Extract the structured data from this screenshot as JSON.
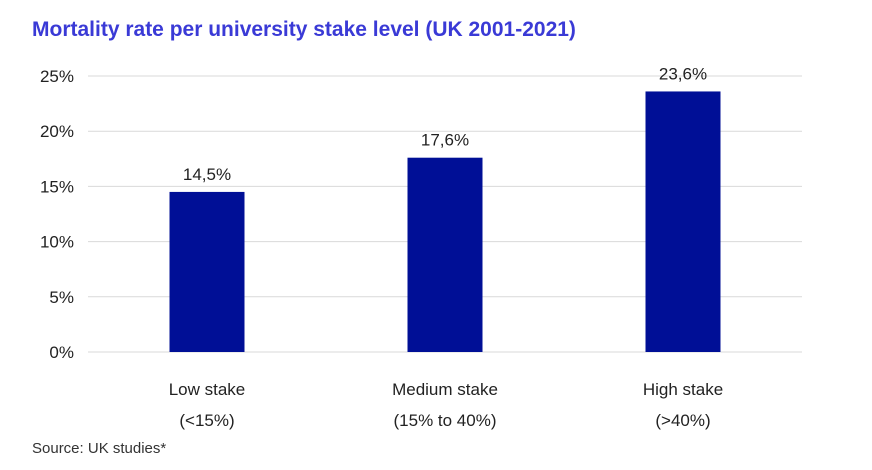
{
  "chart_data": {
    "type": "bar",
    "title": "Mortality rate per university stake level (UK 2001-2021)",
    "categories": [
      [
        "Low stake",
        "(<15%)"
      ],
      [
        "Medium stake",
        "(15% to 40%)"
      ],
      [
        "High stake",
        "(>40%)"
      ]
    ],
    "values": [
      14.5,
      17.6,
      23.6
    ],
    "data_labels": [
      "14,5%",
      "17,6%",
      "23,6%"
    ],
    "y_ticks": [
      0,
      5,
      10,
      15,
      20,
      25
    ],
    "y_tick_labels": [
      "0%",
      "5%",
      "10%",
      "15%",
      "20%",
      "25%"
    ],
    "ylim": [
      0,
      25
    ],
    "xlabel": "",
    "ylabel": "",
    "grid": true,
    "legend": "none",
    "colors": {
      "bar": "#000f96",
      "title": "#3a3ad6",
      "grid": "#d9d9d9"
    }
  },
  "source": "Source: UK studies*"
}
